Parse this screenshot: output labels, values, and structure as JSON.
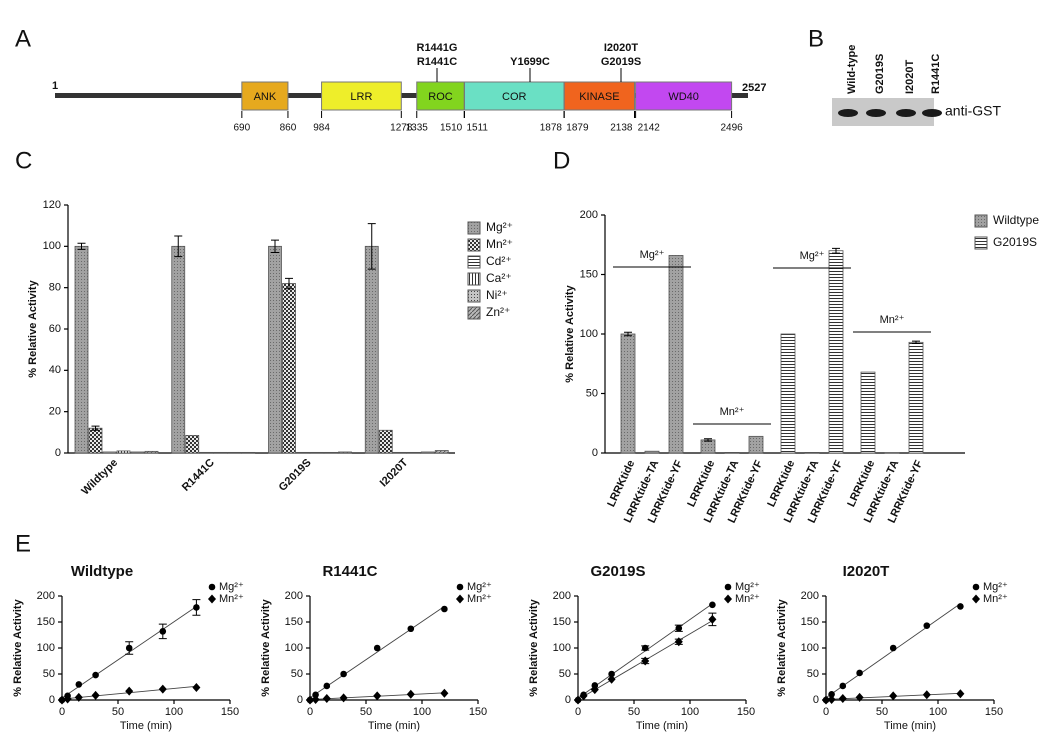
{
  "panel_labels": [
    "A",
    "B",
    "C",
    "D",
    "E"
  ],
  "domain_map": {
    "start": 1,
    "end": 2527,
    "domains": [
      {
        "name": "ANK",
        "start": 690,
        "end": 860,
        "color": "#e6a91e"
      },
      {
        "name": "LRR",
        "start": 984,
        "end": 1278,
        "color": "#eeee2a"
      },
      {
        "name": "ROC",
        "start": 1335,
        "end": 1510,
        "color": "#82d41e"
      },
      {
        "name": "COR",
        "start": 1511,
        "end": 1878,
        "color": "#6ae0c4"
      },
      {
        "name": "KINASE",
        "start": 1879,
        "end": 2138,
        "color": "#f0641e"
      },
      {
        "name": "WD40",
        "start": 2142,
        "end": 2496,
        "color": "#c248f0"
      }
    ],
    "mutations": [
      {
        "labels": [
          "R1441G",
          "R1441C"
        ]
      },
      {
        "labels": [
          "Y1699C"
        ]
      },
      {
        "labels": [
          "I2020T",
          "G2019S"
        ]
      }
    ]
  },
  "western_blot": {
    "lanes": [
      "Wild-type",
      "G2019S",
      "I2020T",
      "R1441C"
    ],
    "antibody": "anti-GST"
  },
  "chart_data": [
    {
      "type": "bar",
      "ylabel": "% Relative Activity",
      "categories": [
        "Wildtype",
        "R1441C",
        "G2019S",
        "I2020T"
      ],
      "series": [
        {
          "name": "Mg²⁺",
          "color": "#555555",
          "pattern": "solid",
          "values": [
            100,
            100,
            100,
            100
          ],
          "errors": [
            1.5,
            5,
            3,
            11
          ]
        },
        {
          "name": "Mn²⁺",
          "color": "#555555",
          "pattern": "checker",
          "values": [
            12,
            8.5,
            82,
            11
          ],
          "errors": [
            1,
            null,
            2.5,
            null
          ]
        },
        {
          "name": "Cd²⁺",
          "color": "#555555",
          "pattern": "hlines",
          "values": [
            0.5,
            0.3,
            0.3,
            0.3
          ]
        },
        {
          "name": "Ca²⁺",
          "color": "#555555",
          "pattern": "vlines",
          "values": [
            1,
            0.3,
            0.3,
            0.3
          ]
        },
        {
          "name": "Ni²⁺",
          "color": "#555555",
          "pattern": "dots",
          "values": [
            0.5,
            0.3,
            0.3,
            0.5
          ]
        },
        {
          "name": "Zn²⁺",
          "color": "#555555",
          "pattern": "diag",
          "values": [
            0.8,
            0.3,
            0.5,
            1.2
          ]
        }
      ],
      "ylim": [
        0,
        120
      ],
      "yticks": [
        0,
        20,
        40,
        60,
        80,
        100,
        120
      ],
      "legend": "right"
    },
    {
      "type": "bar",
      "ylabel": "% Relative Activity",
      "categories": [
        "LRRKtide",
        "LRRKtide-TA",
        "LRRKtide-YF",
        "LRRKtide",
        "LRRKtide-TA",
        "LRRKtide-YF",
        "LRRKtide",
        "LRRKtide-TA",
        "LRRKtide-YF",
        "LRRKtide",
        "LRRKtide-TA",
        "LRRKtide-YF"
      ],
      "series": [
        {
          "name": "Wildtype",
          "color": "#555555",
          "pattern": "solid",
          "values": [
            100,
            1.5,
            166,
            11,
            0.5,
            14,
            null,
            null,
            null,
            null,
            null,
            null
          ],
          "errors": [
            1.5,
            null,
            null,
            1,
            null,
            null,
            null,
            null,
            null,
            null,
            null,
            null
          ]
        },
        {
          "name": "G2019S",
          "color": "#555555",
          "pattern": "hlines",
          "values": [
            null,
            null,
            null,
            null,
            null,
            null,
            100,
            0.5,
            170,
            68,
            0.3,
            93
          ],
          "errors": [
            null,
            null,
            null,
            null,
            null,
            null,
            null,
            null,
            2,
            null,
            null,
            1
          ]
        }
      ],
      "annotations": [
        "Mg²⁺",
        "Mn²⁺",
        "Mg²⁺",
        "Mn²⁺"
      ],
      "ylim": [
        0,
        200
      ],
      "yticks": [
        0,
        50,
        100,
        150,
        200
      ],
      "legend": "right"
    },
    {
      "type": "scatter",
      "title": "Wildtype",
      "xlabel": "Time (min)",
      "ylabel": "% Relative Activity",
      "fit": "linear",
      "x": [
        0,
        5,
        15,
        30,
        60,
        90,
        120
      ],
      "series": [
        {
          "name": "Mg²⁺",
          "color": "#000000",
          "marker": "circle",
          "values": [
            0,
            8,
            30,
            48,
            100,
            132,
            178
          ],
          "errors": [
            null,
            null,
            null,
            null,
            12,
            14,
            15
          ]
        },
        {
          "name": "Mn²⁺",
          "color": "#000000",
          "marker": "diamond",
          "values": [
            0,
            2,
            5,
            9,
            17,
            21,
            24
          ]
        }
      ],
      "xlim": [
        0,
        150
      ],
      "xticks": [
        0,
        50,
        100,
        150
      ],
      "ylim": [
        0,
        200
      ],
      "yticks": [
        0,
        50,
        100,
        150,
        200
      ],
      "legend": "upper right"
    },
    {
      "type": "scatter",
      "title": "R1441C",
      "xlabel": "Time (min)",
      "ylabel": "% Relative Activity",
      "fit": "linear",
      "x": [
        0,
        5,
        15,
        30,
        60,
        90,
        120
      ],
      "series": [
        {
          "name": "Mg²⁺",
          "color": "#000000",
          "marker": "circle",
          "values": [
            0,
            10,
            27,
            50,
            100,
            137,
            175
          ]
        },
        {
          "name": "Mn²⁺",
          "color": "#000000",
          "marker": "diamond",
          "values": [
            0,
            1,
            3,
            4,
            8,
            11,
            13
          ]
        }
      ],
      "xlim": [
        0,
        150
      ],
      "xticks": [
        0,
        50,
        100,
        150
      ],
      "ylim": [
        0,
        200
      ],
      "yticks": [
        0,
        50,
        100,
        150,
        200
      ],
      "legend": "upper right"
    },
    {
      "type": "scatter",
      "title": "G2019S",
      "xlabel": "Time (min)",
      "ylabel": "% Relative Activity",
      "fit": "linear",
      "x": [
        0,
        5,
        15,
        30,
        60,
        90,
        120
      ],
      "series": [
        {
          "name": "Mg²⁺",
          "color": "#000000",
          "marker": "circle",
          "values": [
            0,
            10,
            28,
            50,
            100,
            138,
            183
          ],
          "errors": [
            null,
            null,
            null,
            null,
            4,
            6,
            null
          ]
        },
        {
          "name": "Mn²⁺",
          "color": "#000000",
          "marker": "diamond",
          "values": [
            0,
            8,
            20,
            40,
            75,
            112,
            155
          ],
          "errors": [
            null,
            null,
            null,
            null,
            5,
            5,
            12
          ]
        }
      ],
      "xlim": [
        0,
        150
      ],
      "xticks": [
        0,
        50,
        100,
        150
      ],
      "ylim": [
        0,
        200
      ],
      "yticks": [
        0,
        50,
        100,
        150,
        200
      ],
      "legend": "upper right"
    },
    {
      "type": "scatter",
      "title": "I2020T",
      "xlabel": "Time (min)",
      "ylabel": "% Relative Activity",
      "fit": "linear",
      "x": [
        0,
        5,
        15,
        30,
        60,
        90,
        120
      ],
      "series": [
        {
          "name": "Mg²⁺",
          "color": "#000000",
          "marker": "circle",
          "values": [
            0,
            11,
            27,
            52,
            100,
            143,
            180
          ]
        },
        {
          "name": "Mn²⁺",
          "color": "#000000",
          "marker": "diamond",
          "values": [
            0,
            1,
            3,
            5,
            8,
            10,
            12
          ]
        }
      ],
      "xlim": [
        0,
        150
      ],
      "xticks": [
        0,
        50,
        100,
        150
      ],
      "ylim": [
        0,
        200
      ],
      "yticks": [
        0,
        50,
        100,
        150,
        200
      ],
      "legend": "upper right"
    }
  ]
}
